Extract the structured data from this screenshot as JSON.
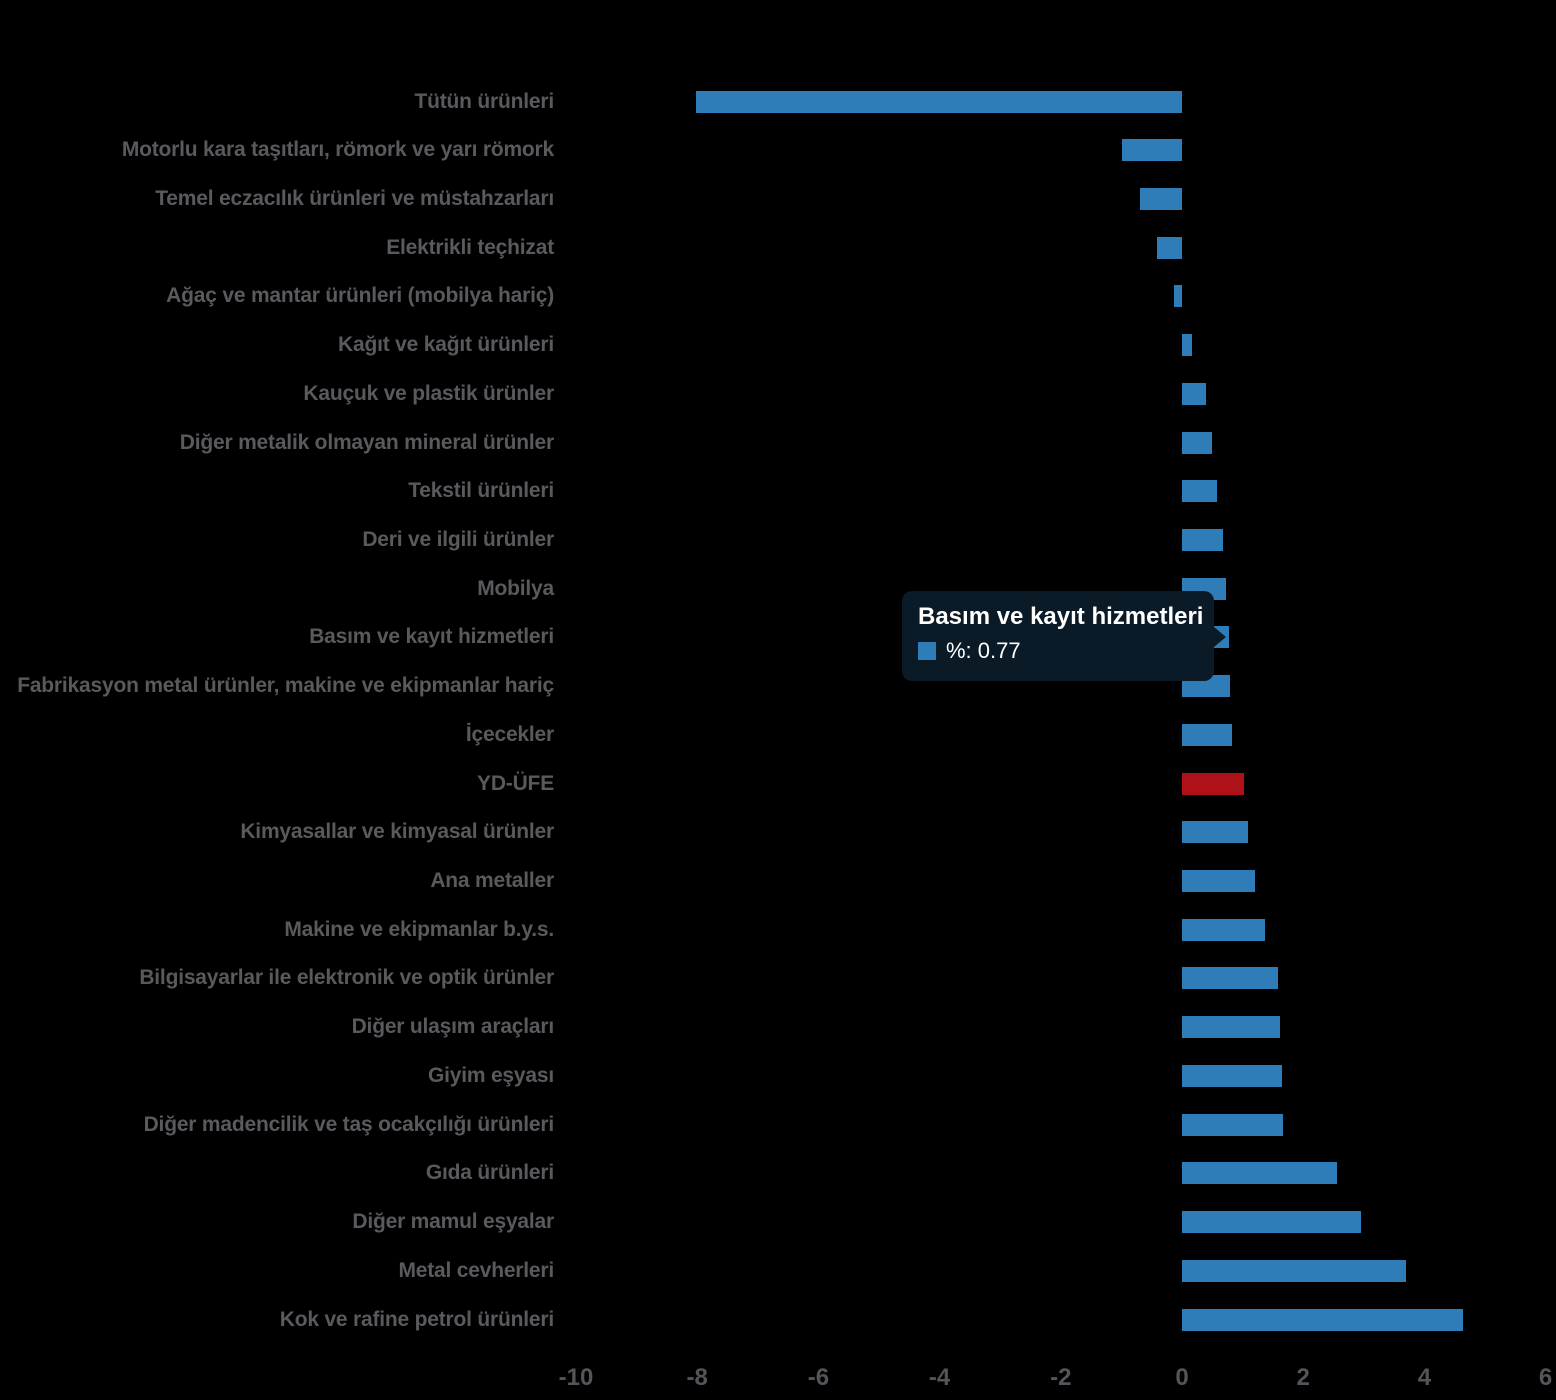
{
  "chart_data": {
    "type": "bar",
    "orientation": "horizontal",
    "title": "",
    "xlabel": "",
    "ylabel": "",
    "series_name": "%",
    "unit": "%",
    "x_ticks": [
      -10,
      -8,
      -6,
      -4,
      -2,
      0,
      2,
      4,
      6
    ],
    "xlim": [
      -10.3,
      6.2
    ],
    "grid": false,
    "legend": false,
    "categories": [
      "Tütün ürünleri",
      "Motorlu kara taşıtları, römork ve yarı römork",
      "Temel eczacılık ürünleri ve müstahzarları",
      "Elektrikli teçhizat",
      "Ağaç ve mantar ürünleri (mobilya hariç)",
      "Kağıt ve kağıt ürünleri",
      "Kauçuk ve plastik ürünler",
      "Diğer metalik olmayan mineral ürünler",
      "Tekstil ürünleri",
      "Deri ve ilgili ürünler",
      "Mobilya",
      "Basım ve kayıt hizmetleri",
      "Fabrikasyon metal ürünler, makine ve ekipmanlar hariç",
      "İçecekler",
      "YD-ÜFE",
      "Kimyasallar ve kimyasal ürünler",
      "Ana metaller",
      "Makine ve ekipmanlar b.y.s.",
      "Bilgisayarlar ile elektronik ve optik ürünler",
      "Diğer ulaşım araçları",
      "Giyim eşyası",
      "Diğer madencilik ve taş ocakçılığı ürünleri",
      "Gıda ürünleri",
      "Diğer mamul eşyalar",
      "Metal cevherleri",
      "Kok ve rafine petrol ürünleri"
    ],
    "values": [
      -8.02,
      -0.99,
      -0.69,
      -0.41,
      -0.14,
      0.16,
      0.4,
      0.5,
      0.57,
      0.67,
      0.72,
      0.77,
      0.79,
      0.82,
      1.02,
      1.09,
      1.2,
      1.37,
      1.58,
      1.62,
      1.65,
      1.66,
      2.56,
      2.95,
      3.69,
      4.63
    ],
    "special_category": "YD-ÜFE",
    "highlighted_category": "Basım ve kayıt hizmetleri"
  },
  "tooltip": {
    "title": "Basım ve kayıt hizmetleri",
    "value_text": "%: 0.77"
  },
  "colors": {
    "background": "#000000",
    "bar": "#2E7DB9",
    "accent_red": "#AF1118",
    "label_gray": "#595A5E",
    "axis_gray": "#54555A",
    "tooltip_bg": "#0B1A27",
    "tooltip_text": "#FFFFFF"
  }
}
